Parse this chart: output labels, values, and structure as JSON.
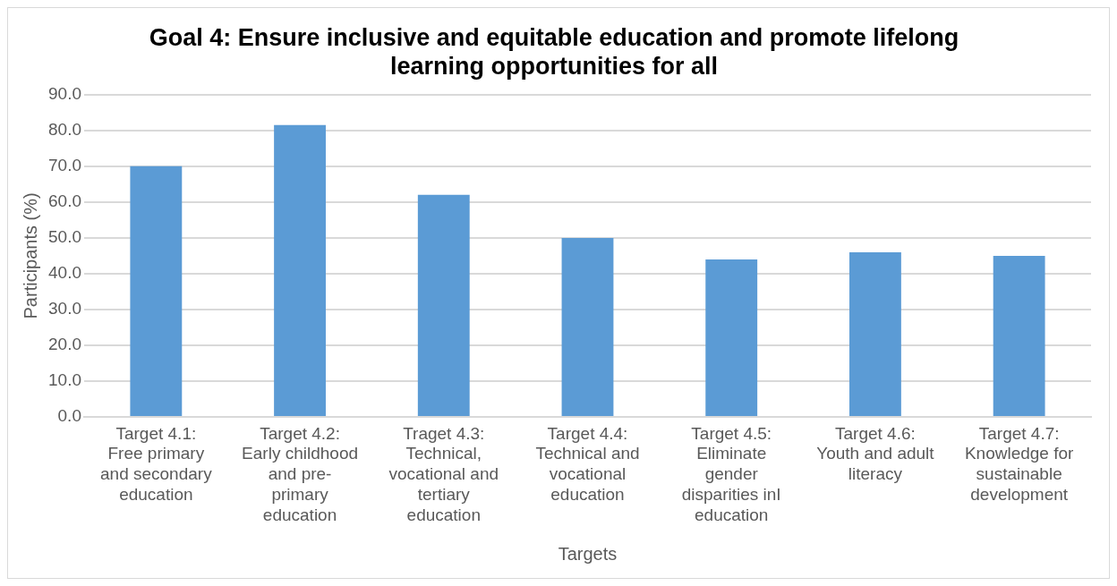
{
  "chart_data": {
    "type": "bar",
    "title": "Goal 4: Ensure inclusive and equitable education and promote lifelong learning opportunities for all",
    "xlabel": "Targets",
    "ylabel": "Participants (%)",
    "categories": [
      "Target 4.1: Free primary and secondary education",
      "Target 4.2: Early childhood and pre-primary education",
      "Traget 4.3: Technical, vocational and tertiary education",
      "Target 4.4: Technical and vocational education",
      "Target 4.5: Eliminate gender disparities inI education",
      "Target 4.6: Youth and adult literacy",
      "Target 4.7: Knowledge for sustainable development"
    ],
    "values": [
      70,
      81.5,
      62,
      50,
      44,
      46,
      45
    ],
    "color": "#5b9bd5",
    "ylim": [
      0,
      90
    ],
    "yticks": [
      {
        "value": 0,
        "label": "0.0"
      },
      {
        "value": 10,
        "label": "10.0"
      },
      {
        "value": 20,
        "label": "20.0"
      },
      {
        "value": 30,
        "label": "30.0"
      },
      {
        "value": 40,
        "label": "40.0"
      },
      {
        "value": 50,
        "label": "50.0"
      },
      {
        "value": 60,
        "label": "60.0"
      },
      {
        "value": 70,
        "label": "70.0"
      },
      {
        "value": 80,
        "label": "80.0"
      },
      {
        "value": 90,
        "label": "90.0"
      }
    ],
    "grid": "y"
  }
}
